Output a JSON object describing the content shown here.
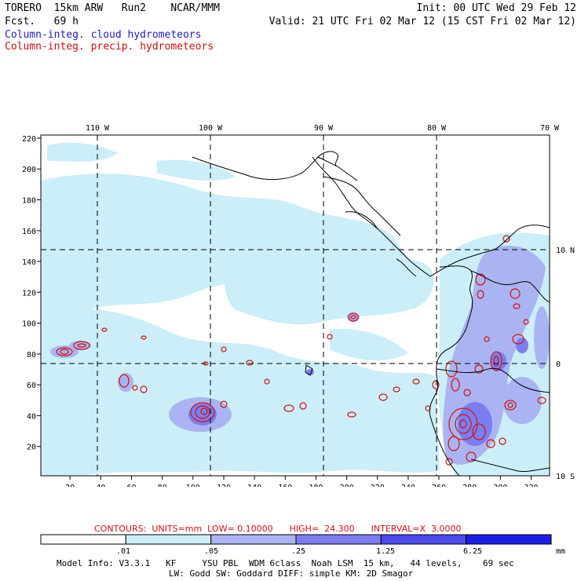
{
  "header": {
    "title_left": "TORERO  15km ARW   Run2    NCAR/MMM",
    "fcst": "Fcst.   69 h",
    "init": "Init: 00 UTC Wed 29 Feb 12",
    "valid": "Valid: 21 UTC Fri 02 Mar 12 (15 CST Fri 02 Mar 12)",
    "legend_cloud": "Column-integ. cloud hydrometeors",
    "legend_precip": "Column-integ. precip. hydrometeors"
  },
  "map": {
    "top_lon_labels": [
      "110 W",
      "100 W",
      "90 W",
      "80 W",
      "70 W"
    ],
    "right_lat_labels": [
      "10 N",
      "0",
      "10 S"
    ],
    "x_ticks": [
      "20",
      "40",
      "60",
      "80",
      "100",
      "120",
      "140",
      "160",
      "180",
      "200",
      "220",
      "240",
      "260",
      "280",
      "300",
      "320"
    ],
    "y_ticks": [
      "20",
      "40",
      "60",
      "80",
      "100",
      "120",
      "140",
      "160",
      "180",
      "200",
      "220"
    ]
  },
  "contours": {
    "info": "CONTOURS:  UNITS=mm  LOW= 0.10000      HIGH=  24.300      INTERVAL=X  3.0000"
  },
  "colorbar": {
    "labels": [
      ".01",
      ".05",
      ".25",
      "1.25",
      "6.25"
    ],
    "unit": "mm",
    "colors": [
      "#ffffff",
      "#cbeef8",
      "#aab4f2",
      "#7b7ef0",
      "#4a4aec",
      "#1c1ce6"
    ]
  },
  "footer": {
    "line1": "Model Info: V3.3.1   KF     YSU PBL  WDM 6class  Noah LSM  15 km,   44 levels,    69 sec",
    "line2": "LW: Godd SW: Goddard DIFF: simple KM: 2D Smagor"
  },
  "colors": {
    "cloud_legend": "#2020d0",
    "precip_legend": "#d01010",
    "precip_contour": "#d01010"
  }
}
